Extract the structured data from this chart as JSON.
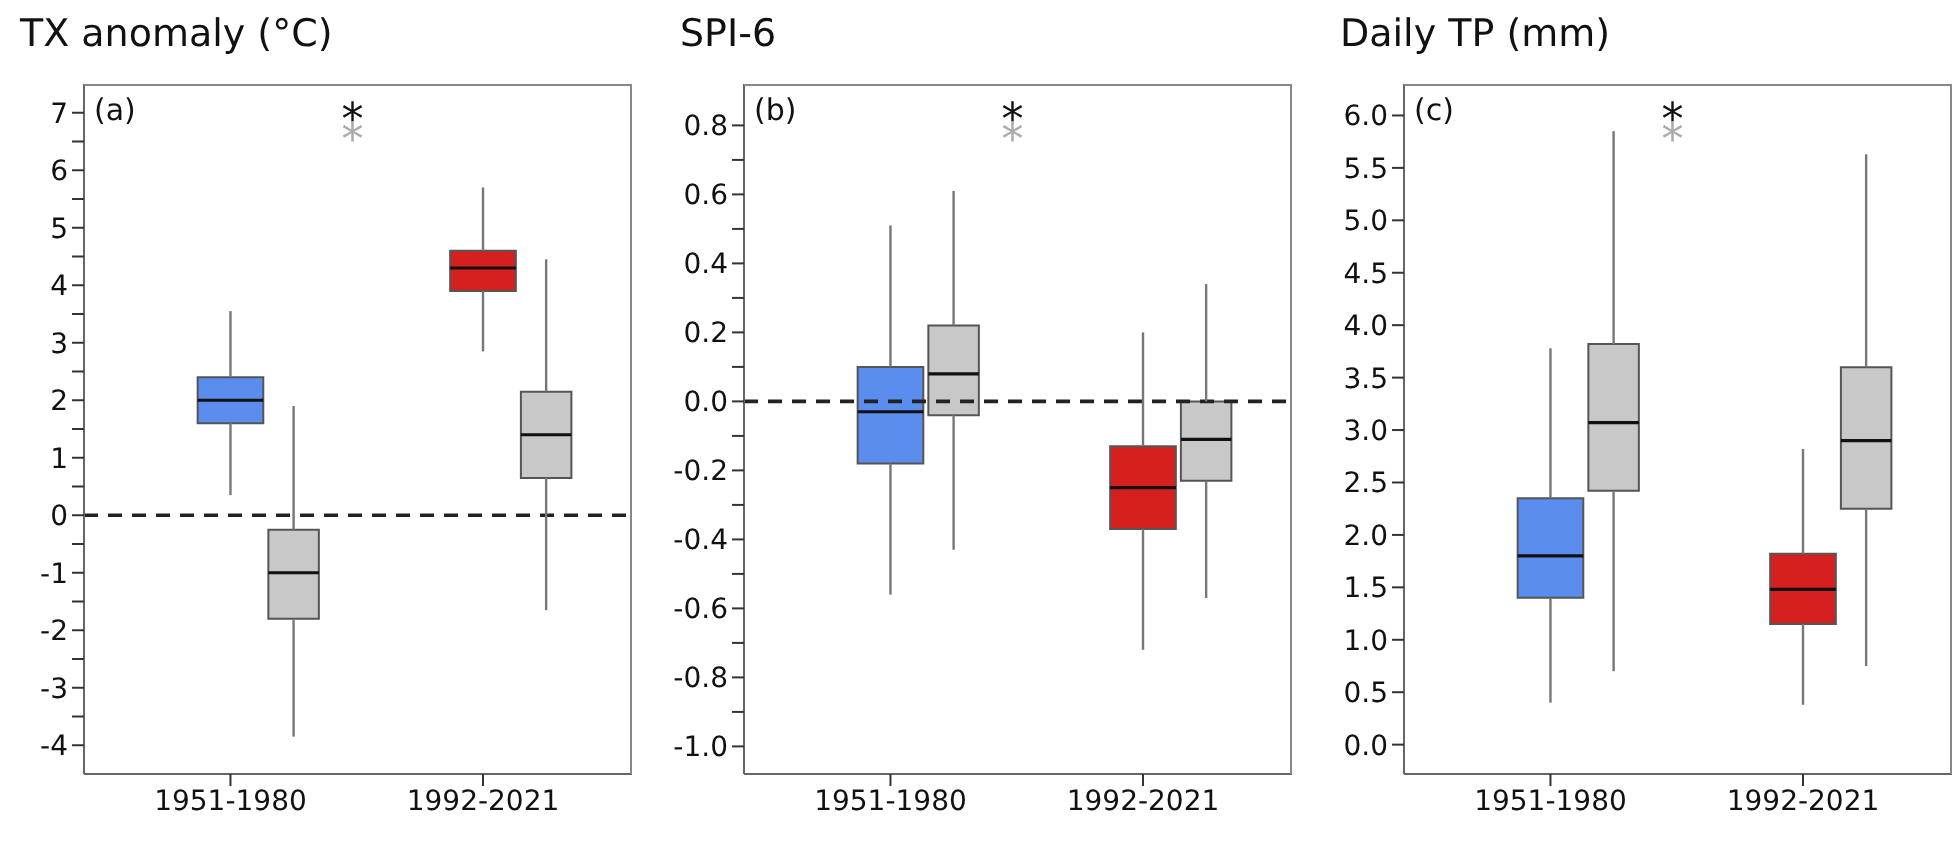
{
  "chart_data": [
    {
      "type": "box",
      "title": "TX anomaly (°C)",
      "categories": [
        "1951-1980",
        "1992-2021"
      ],
      "series": [
        {
          "colors": [
            "#5b8def",
            "#d62020"
          ],
          "boxes": [
            {
              "low": 0.35,
              "q1": 1.6,
              "median": 2.0,
              "q3": 2.4,
              "high": 3.55
            },
            {
              "low": 2.85,
              "q1": 3.9,
              "median": 4.3,
              "q3": 4.6,
              "high": 5.7
            }
          ]
        },
        {
          "color": "#c8c8c8",
          "boxes": [
            {
              "low": -3.85,
              "q1": -1.8,
              "median": -1.0,
              "q3": -0.25,
              "high": 1.9
            },
            {
              "low": -1.65,
              "q1": 0.65,
              "median": 1.4,
              "q3": 2.15,
              "high": 4.45
            }
          ]
        }
      ],
      "ylim": [
        -4.5,
        7.5
      ],
      "yticks": [
        -4,
        {
          "value": -3.5,
          "label": null
        },
        -3,
        {
          "value": -2.5,
          "label": null
        },
        -2,
        {
          "value": -1.5,
          "label": null
        },
        -1,
        {
          "value": -0.5,
          "label": null
        },
        0,
        {
          "value": 0.5,
          "label": null
        },
        1,
        {
          "value": 1.5,
          "label": null
        },
        2,
        {
          "value": 2.5,
          "label": null
        },
        3,
        {
          "value": 3.5,
          "label": null
        },
        4,
        {
          "value": 4.5,
          "label": null
        },
        5,
        {
          "value": 5.5,
          "label": null
        },
        6,
        {
          "value": 6.5,
          "label": null
        },
        7
      ],
      "ref_lines": [
        {
          "axis": "y",
          "value": 0,
          "color": "#222222",
          "line_style": "dashed"
        }
      ],
      "annotations": [
        "(a)",
        "*",
        "*"
      ]
    },
    {
      "type": "box",
      "title": "SPI-6",
      "categories": [
        "1951-1980",
        "1992-2021"
      ],
      "series": [
        {
          "colors": [
            "#5b8def",
            "#d62020"
          ],
          "boxes": [
            {
              "low": -0.56,
              "q1": -0.18,
              "median": -0.03,
              "q3": 0.1,
              "high": 0.51
            },
            {
              "low": -0.72,
              "q1": -0.37,
              "median": -0.25,
              "q3": -0.13,
              "high": 0.2
            }
          ]
        },
        {
          "color": "#c8c8c8",
          "boxes": [
            {
              "low": -0.43,
              "q1": -0.04,
              "median": 0.08,
              "q3": 0.22,
              "high": 0.61
            },
            {
              "low": -0.57,
              "q1": -0.23,
              "median": -0.11,
              "q3": 0.0,
              "high": 0.34
            }
          ]
        }
      ],
      "ylim": [
        -1.08,
        0.92
      ],
      "yticks": [
        {
          "value": -1,
          "label": "-1.0"
        },
        {
          "value": -0.9,
          "label": null
        },
        -0.8,
        {
          "value": -0.7,
          "label": null
        },
        -0.6,
        {
          "value": -0.5,
          "label": null
        },
        -0.4,
        {
          "value": -0.3,
          "label": null
        },
        -0.2,
        {
          "value": -0.1,
          "label": null
        },
        {
          "value": 0,
          "label": "0.0"
        },
        {
          "value": 0.1,
          "label": null
        },
        0.2,
        {
          "value": 0.3,
          "label": null
        },
        0.4,
        {
          "value": 0.5,
          "label": null
        },
        0.6,
        {
          "value": 0.7,
          "label": null
        },
        0.8
      ],
      "ref_lines": [
        {
          "axis": "y",
          "value": 0,
          "color": "#222222",
          "line_style": "dashed"
        }
      ],
      "annotations": [
        "(b)",
        "*",
        "*"
      ]
    },
    {
      "type": "box",
      "title": "Daily TP (mm)",
      "categories": [
        "1951-1980",
        "1992-2021"
      ],
      "series": [
        {
          "colors": [
            "#5b8def",
            "#d62020"
          ],
          "boxes": [
            {
              "low": 0.4,
              "q1": 1.4,
              "median": 1.8,
              "q3": 2.35,
              "high": 3.78
            },
            {
              "low": 0.38,
              "q1": 1.15,
              "median": 1.48,
              "q3": 1.82,
              "high": 2.82
            }
          ]
        },
        {
          "color": "#c8c8c8",
          "boxes": [
            {
              "low": 0.7,
              "q1": 2.42,
              "median": 3.07,
              "q3": 3.82,
              "high": 5.85
            },
            {
              "low": 0.75,
              "q1": 2.25,
              "median": 2.9,
              "q3": 3.6,
              "high": 5.63
            }
          ]
        }
      ],
      "ylim": [
        -0.28,
        6.3
      ],
      "yticks": [
        {
          "value": 0,
          "label": "0.0"
        },
        0.5,
        {
          "value": 1,
          "label": "1.0"
        },
        1.5,
        {
          "value": 2,
          "label": "2.0"
        },
        2.5,
        {
          "value": 3,
          "label": "3.0"
        },
        3.5,
        {
          "value": 4,
          "label": "4.0"
        },
        4.5,
        {
          "value": 5,
          "label": "5.0"
        },
        5.5,
        {
          "value": 6,
          "label": "6.0"
        }
      ],
      "annotations": [
        "(c)",
        "*",
        "*"
      ]
    }
  ]
}
